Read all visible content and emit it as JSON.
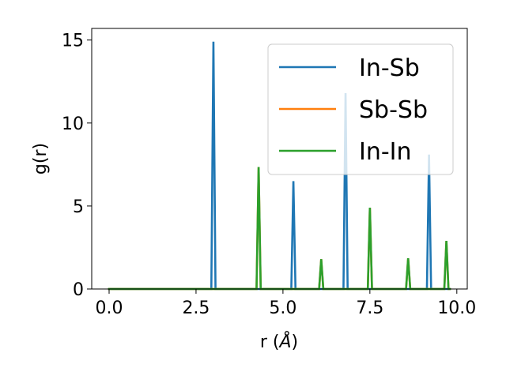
{
  "chart_data": {
    "type": "line",
    "xlabel_main": "r (",
    "xlabel_unit": "Å",
    "xlabel_close": ")",
    "ylabel": "g(r)",
    "xlim": [
      -0.5,
      10.3
    ],
    "ylim": [
      0,
      15.7
    ],
    "x_ticks": [
      0.0,
      2.5,
      5.0,
      7.5,
      10.0
    ],
    "x_tick_labels": [
      "0.0",
      "2.5",
      "5.0",
      "7.5",
      "10.0"
    ],
    "y_ticks": [
      0,
      5,
      10,
      15
    ],
    "y_tick_labels": [
      "0",
      "5",
      "10",
      "15"
    ],
    "grid": false,
    "legend_position": "top-right",
    "series": [
      {
        "name": "In-Sb",
        "color": "#1f77b4",
        "peaks": [
          {
            "x": 3.0,
            "y": 14.9
          },
          {
            "x": 5.3,
            "y": 6.5
          },
          {
            "x": 6.8,
            "y": 11.8
          },
          {
            "x": 9.2,
            "y": 8.1
          }
        ]
      },
      {
        "name": "Sb-Sb",
        "color": "#ff7f0e",
        "peaks": [
          {
            "x": 4.3,
            "y": 7.35
          },
          {
            "x": 6.1,
            "y": 1.8
          },
          {
            "x": 7.5,
            "y": 4.9
          },
          {
            "x": 8.6,
            "y": 1.85
          },
          {
            "x": 9.7,
            "y": 2.9
          }
        ]
      },
      {
        "name": "In-In",
        "color": "#2ca02c",
        "peaks": [
          {
            "x": 4.3,
            "y": 7.35
          },
          {
            "x": 6.1,
            "y": 1.8
          },
          {
            "x": 7.5,
            "y": 4.9
          },
          {
            "x": 8.6,
            "y": 1.85
          },
          {
            "x": 9.7,
            "y": 2.9
          }
        ]
      }
    ],
    "x_range": [
      0.0,
      9.8
    ]
  }
}
